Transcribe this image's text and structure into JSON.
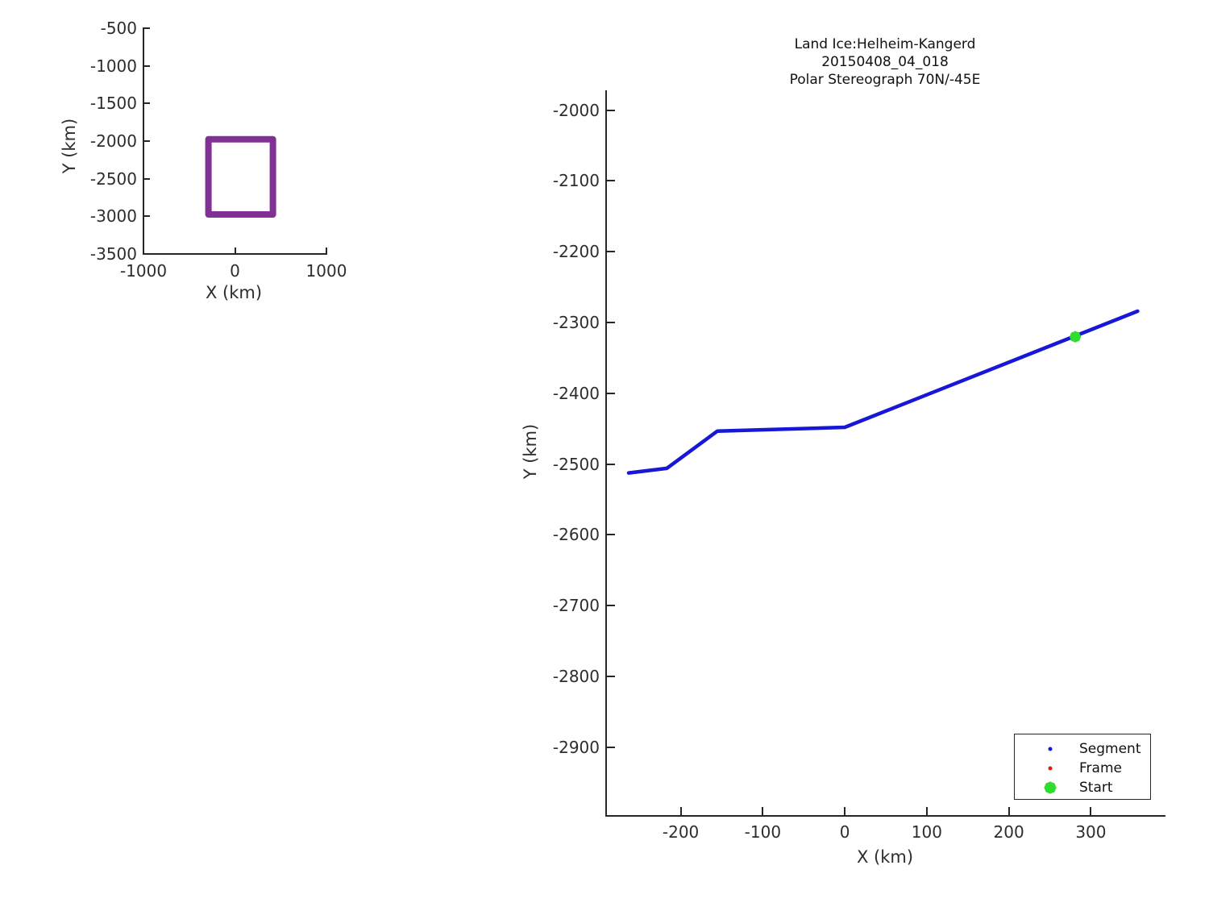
{
  "colors": {
    "background": "#ffffff",
    "axis": "#262626",
    "text": "#2d2d2d",
    "segment_blue": "#1717d8",
    "frame_red": "#dc1b1b",
    "start_green": "#2fdc2f",
    "coverage_purple": "#813093"
  },
  "chart_data": [
    {
      "id": "overview",
      "type": "line",
      "title": "",
      "xlabel": "X (km)",
      "ylabel": "Y (km)",
      "xlim": [
        -1000,
        1000
      ],
      "ylim": [
        -3500,
        -500
      ],
      "xticks": [
        -1000,
        0,
        1000
      ],
      "yticks": [
        -500,
        -1000,
        -1500,
        -2000,
        -2500,
        -3000,
        -3500
      ],
      "grid": false,
      "legend_position": "none",
      "series": [
        {
          "name": "coverage-outline",
          "color": "#813093",
          "linewidth": 8,
          "points": [
            [
              -290,
              -1975
            ],
            [
              415,
              -1975
            ],
            [
              415,
              -2975
            ],
            [
              -290,
              -2975
            ],
            [
              -290,
              -1975
            ]
          ]
        }
      ]
    },
    {
      "id": "main",
      "type": "line",
      "title_lines": [
        "Land Ice:Helheim-Kangerd",
        "20150408_04_018",
        "Polar Stereograph 70N/-45E"
      ],
      "xlabel": "X (km)",
      "ylabel": "Y (km)",
      "xlim": [
        -291,
        390
      ],
      "ylim": [
        -2997,
        -1973
      ],
      "xticks": [
        -200,
        -100,
        0,
        100,
        200,
        300
      ],
      "yticks": [
        -2000,
        -2100,
        -2200,
        -2300,
        -2400,
        -2500,
        -2600,
        -2700,
        -2800,
        -2900
      ],
      "grid": false,
      "series": [
        {
          "name": "segment-track",
          "color": "#1717d8",
          "linewidth": 4.5,
          "points": [
            [
              -263.5,
              -2512.5
            ],
            [
              -217,
              -2506
            ],
            [
              -155.5,
              -2453.5
            ],
            [
              0,
              -2448
            ],
            [
              357,
              -2284
            ]
          ]
        }
      ],
      "start_marker": {
        "x": 281,
        "y": -2320,
        "color": "#2fdc2f",
        "label": "Start"
      },
      "legend": {
        "position": "bottom-right",
        "entries": [
          {
            "label": "Segment",
            "marker": "dot",
            "color": "#1717d8"
          },
          {
            "label": "Frame",
            "marker": "dot",
            "color": "#dc1b1b"
          },
          {
            "label": "Start",
            "marker": "clover",
            "color": "#2fdc2f"
          }
        ]
      }
    }
  ]
}
